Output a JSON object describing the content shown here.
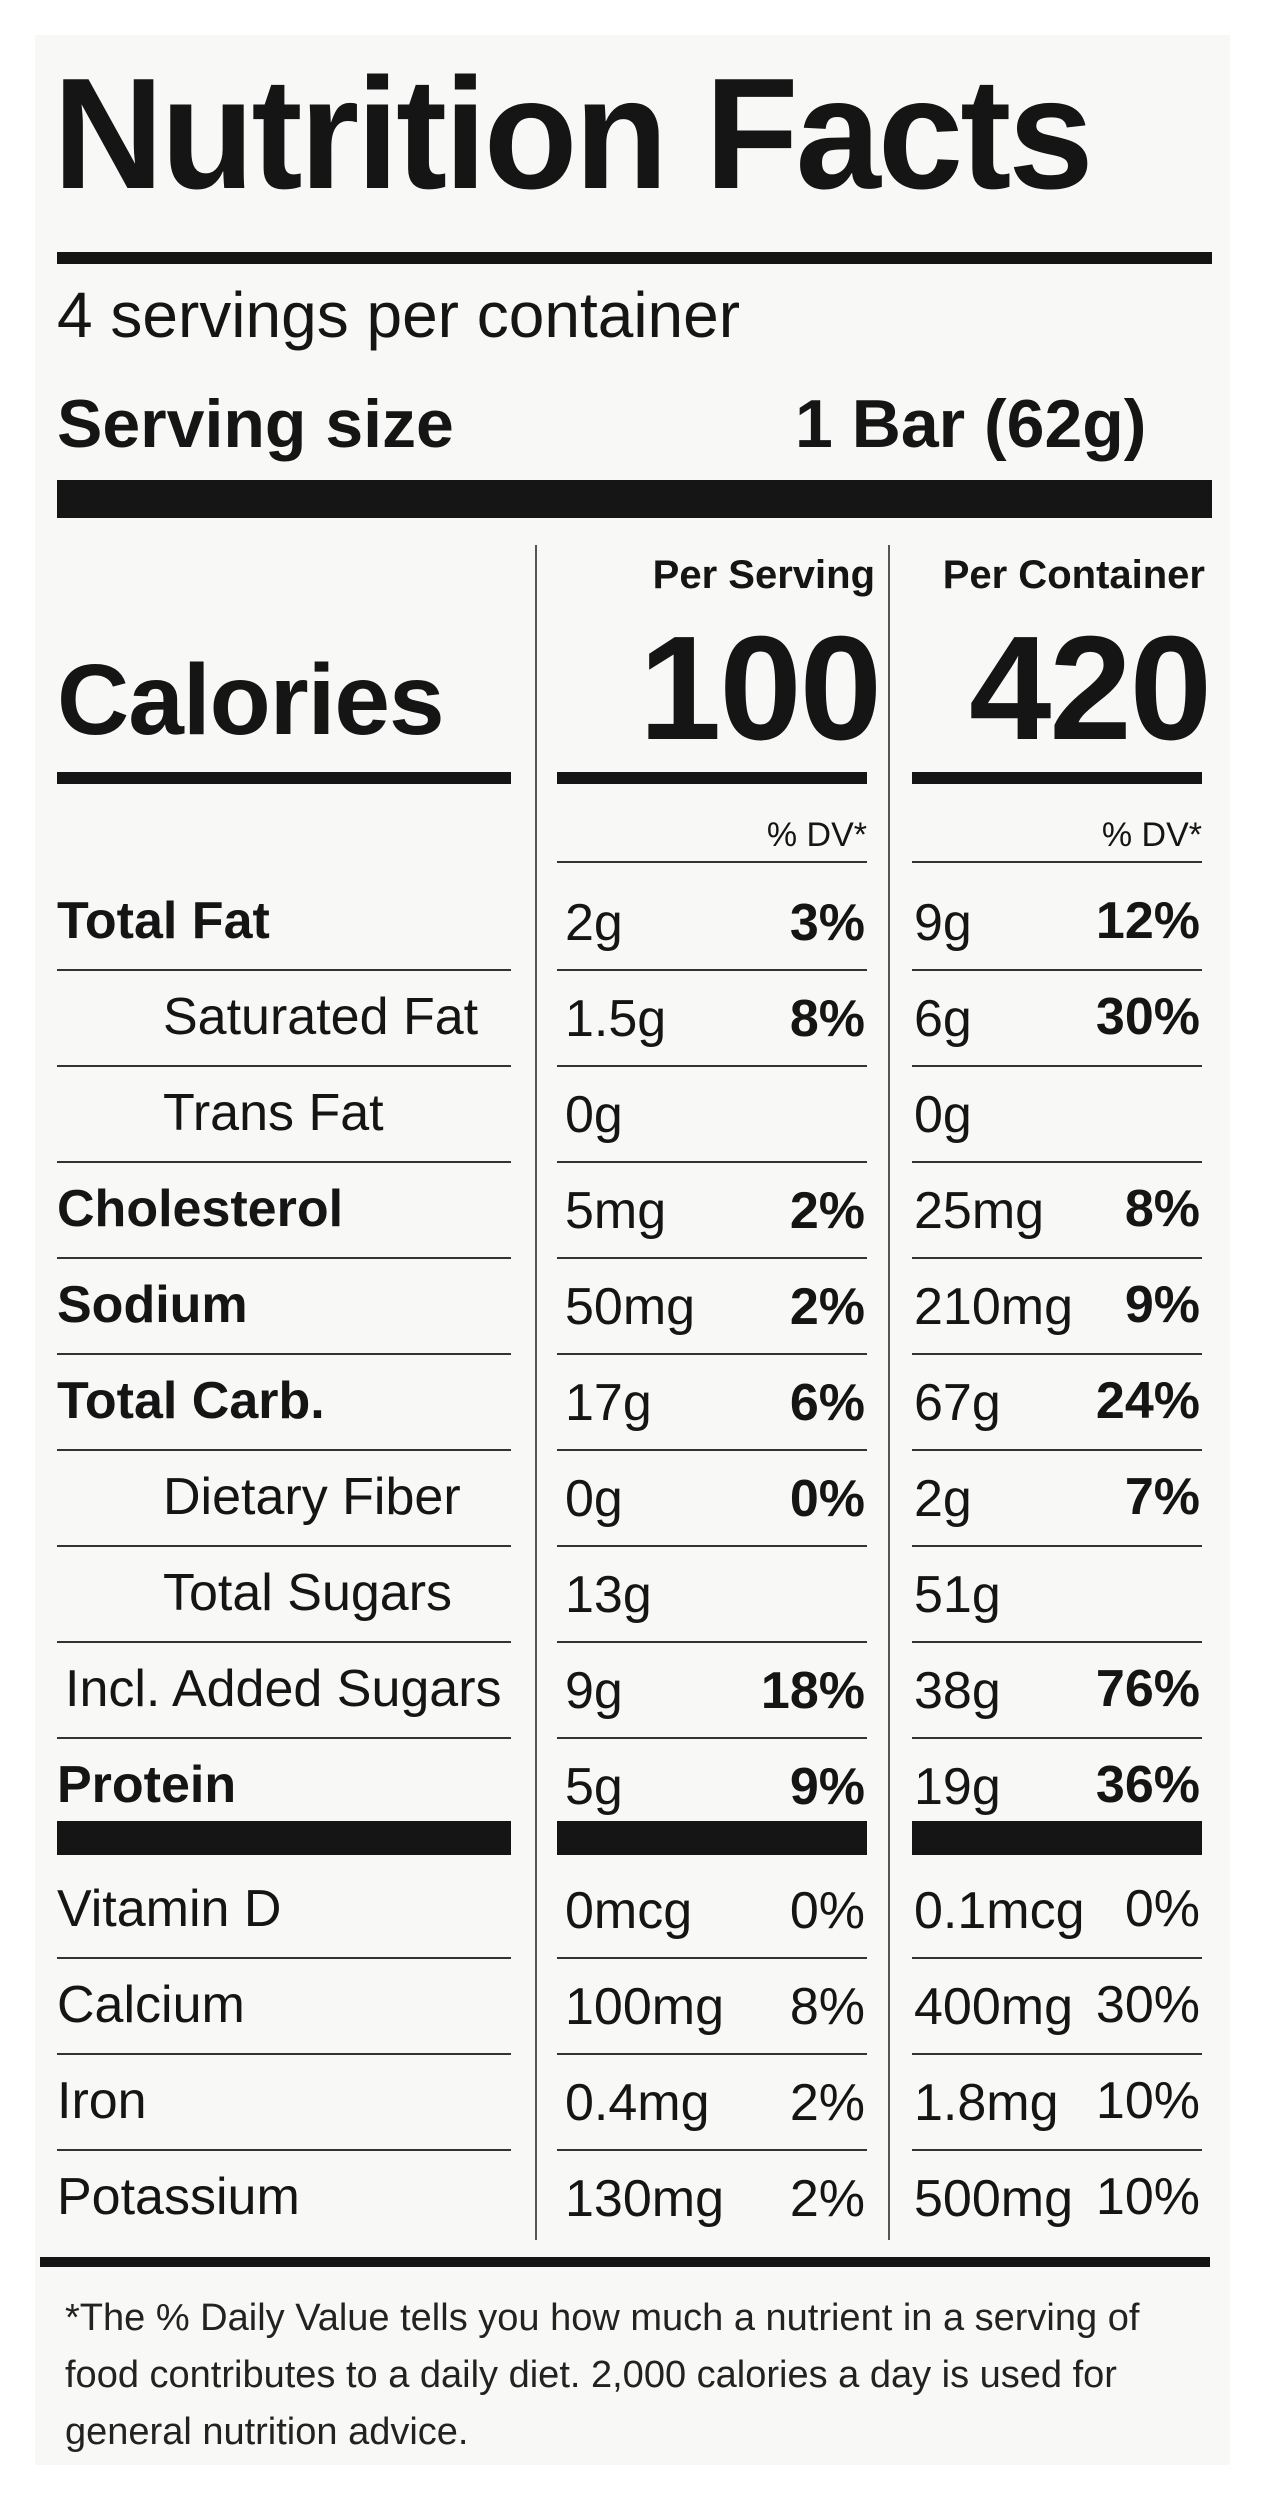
{
  "title": "Nutrition Facts",
  "servings_per_container": "4 servings per container",
  "serving_size": {
    "label": "Serving size",
    "value": "1 Bar (62g)"
  },
  "columns": {
    "per_serving": "Per Serving",
    "per_container": "Per Container"
  },
  "calories": {
    "label": "Calories",
    "per_serving": "100",
    "per_container": "420"
  },
  "dv_header": "% DV*",
  "nutrients": [
    {
      "name": "Total Fat",
      "serving_amount": "2g",
      "serving_dv": "3%",
      "container_amount": "9g",
      "container_dv": "12%"
    },
    {
      "name": "Saturated Fat",
      "serving_amount": "1.5g",
      "serving_dv": "8%",
      "container_amount": "6g",
      "container_dv": "30%"
    },
    {
      "name": "Trans Fat",
      "serving_amount": "0g",
      "serving_dv": "",
      "container_amount": "0g",
      "container_dv": ""
    },
    {
      "name": "Cholesterol",
      "serving_amount": "5mg",
      "serving_dv": "2%",
      "container_amount": "25mg",
      "container_dv": "8%"
    },
    {
      "name": "Sodium",
      "serving_amount": "50mg",
      "serving_dv": "2%",
      "container_amount": "210mg",
      "container_dv": "9%"
    },
    {
      "name": "Total Carb.",
      "serving_amount": "17g",
      "serving_dv": "6%",
      "container_amount": "67g",
      "container_dv": "24%"
    },
    {
      "name": "Dietary Fiber",
      "serving_amount": "0g",
      "serving_dv": "0%",
      "container_amount": "2g",
      "container_dv": "7%"
    },
    {
      "name": "Total Sugars",
      "serving_amount": "13g",
      "serving_dv": "",
      "container_amount": "51g",
      "container_dv": ""
    },
    {
      "name": "Incl. Added Sugars",
      "serving_amount": "9g",
      "serving_dv": "18%",
      "container_amount": "38g",
      "container_dv": "76%"
    },
    {
      "name": "Protein",
      "serving_amount": "5g",
      "serving_dv": "9%",
      "container_amount": "19g",
      "container_dv": "36%"
    }
  ],
  "vitamins": [
    {
      "name": "Vitamin D",
      "serving_amount": "0mcg",
      "serving_dv": "0%",
      "container_amount": "0.1mcg",
      "container_dv": "0%"
    },
    {
      "name": "Calcium",
      "serving_amount": "100mg",
      "serving_dv": "8%",
      "container_amount": "400mg",
      "container_dv": "30%"
    },
    {
      "name": "Iron",
      "serving_amount": "0.4mg",
      "serving_dv": "2%",
      "container_amount": "1.8mg",
      "container_dv": "10%"
    },
    {
      "name": "Potassium",
      "serving_amount": "130mg",
      "serving_dv": "2%",
      "container_amount": "500mg",
      "container_dv": "10%"
    }
  ],
  "footnote": "*The % Daily Value tells you how much a nutrient in a serving of food contributes to a daily diet. 2,000 calories a day is used for general nutrition advice."
}
